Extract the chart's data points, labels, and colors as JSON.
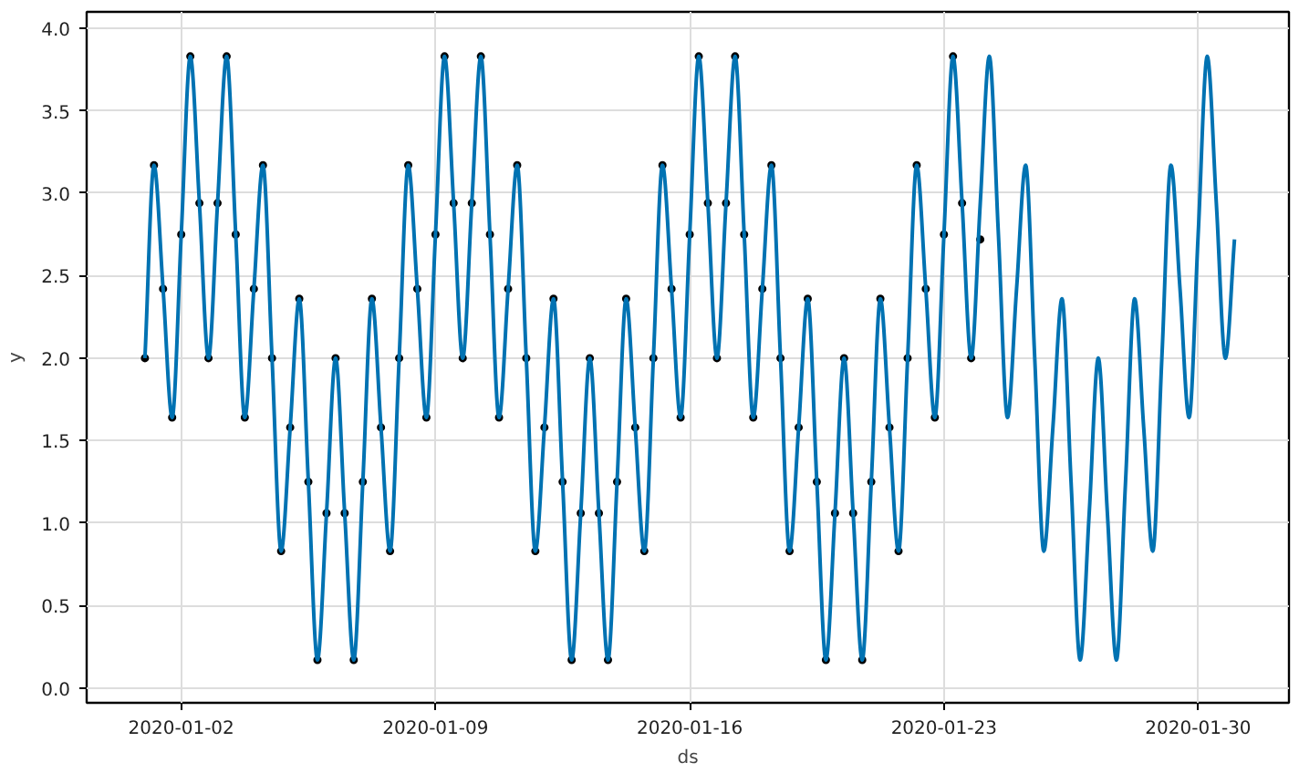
{
  "chart_data": {
    "type": "line",
    "xlabel": "ds",
    "ylabel": "y",
    "x": [
      "2020-01-01T00:00",
      "2020-01-01T06:00",
      "2020-01-01T12:00",
      "2020-01-01T18:00",
      "2020-01-02T00:00",
      "2020-01-02T06:00",
      "2020-01-02T12:00",
      "2020-01-02T18:00",
      "2020-01-03T00:00",
      "2020-01-03T06:00",
      "2020-01-03T12:00",
      "2020-01-03T18:00",
      "2020-01-04T00:00",
      "2020-01-04T06:00",
      "2020-01-04T12:00",
      "2020-01-04T18:00",
      "2020-01-05T00:00",
      "2020-01-05T06:00",
      "2020-01-05T12:00",
      "2020-01-05T18:00",
      "2020-01-06T00:00",
      "2020-01-06T06:00",
      "2020-01-06T12:00",
      "2020-01-06T18:00",
      "2020-01-07T00:00",
      "2020-01-07T06:00",
      "2020-01-07T12:00",
      "2020-01-07T18:00",
      "2020-01-08T00:00",
      "2020-01-08T06:00",
      "2020-01-08T12:00",
      "2020-01-08T18:00",
      "2020-01-09T00:00",
      "2020-01-09T06:00",
      "2020-01-09T12:00",
      "2020-01-09T18:00",
      "2020-01-10T00:00",
      "2020-01-10T06:00",
      "2020-01-10T12:00",
      "2020-01-10T18:00",
      "2020-01-11T00:00",
      "2020-01-11T06:00",
      "2020-01-11T12:00",
      "2020-01-11T18:00",
      "2020-01-12T00:00",
      "2020-01-12T06:00",
      "2020-01-12T12:00",
      "2020-01-12T18:00",
      "2020-01-13T00:00",
      "2020-01-13T06:00",
      "2020-01-13T12:00",
      "2020-01-13T18:00",
      "2020-01-14T00:00",
      "2020-01-14T06:00",
      "2020-01-14T12:00",
      "2020-01-14T18:00",
      "2020-01-15T00:00",
      "2020-01-15T06:00",
      "2020-01-15T12:00",
      "2020-01-15T18:00",
      "2020-01-16T00:00",
      "2020-01-16T06:00",
      "2020-01-16T12:00",
      "2020-01-16T18:00",
      "2020-01-17T00:00",
      "2020-01-17T06:00",
      "2020-01-17T12:00",
      "2020-01-17T18:00",
      "2020-01-18T00:00",
      "2020-01-18T06:00",
      "2020-01-18T12:00",
      "2020-01-18T18:00",
      "2020-01-19T00:00",
      "2020-01-19T06:00",
      "2020-01-19T12:00",
      "2020-01-19T18:00",
      "2020-01-20T00:00",
      "2020-01-20T06:00",
      "2020-01-20T12:00",
      "2020-01-20T18:00",
      "2020-01-21T00:00",
      "2020-01-21T06:00",
      "2020-01-21T12:00",
      "2020-01-21T18:00",
      "2020-01-22T00:00",
      "2020-01-22T06:00",
      "2020-01-22T12:00",
      "2020-01-22T18:00",
      "2020-01-23T00:00",
      "2020-01-23T06:00",
      "2020-01-23T12:00",
      "2020-01-23T18:00",
      "2020-01-24T00:00",
      "2020-01-24T06:00",
      "2020-01-24T12:00",
      "2020-01-24T18:00",
      "2020-01-25T00:00",
      "2020-01-25T06:00",
      "2020-01-25T12:00",
      "2020-01-25T18:00",
      "2020-01-26T00:00",
      "2020-01-26T06:00",
      "2020-01-26T12:00",
      "2020-01-26T18:00",
      "2020-01-27T00:00",
      "2020-01-27T06:00",
      "2020-01-27T12:00",
      "2020-01-27T18:00",
      "2020-01-28T00:00",
      "2020-01-28T06:00",
      "2020-01-28T12:00",
      "2020-01-28T18:00",
      "2020-01-29T00:00",
      "2020-01-29T06:00",
      "2020-01-29T12:00",
      "2020-01-29T18:00",
      "2020-01-30T00:00",
      "2020-01-30T06:00",
      "2020-01-30T12:00",
      "2020-01-30T18:00",
      "2020-01-31T00:00"
    ],
    "series": [
      {
        "type": "scatter",
        "color": "#000000",
        "values": [
          2.0,
          3.17,
          2.42,
          1.64,
          2.75,
          3.83,
          2.94,
          2.0,
          2.94,
          3.83,
          2.75,
          1.64,
          2.42,
          3.17,
          2.0,
          0.83,
          1.58,
          2.36,
          1.25,
          0.17,
          1.06,
          2.0,
          1.06,
          0.17,
          1.25,
          2.36,
          1.58,
          0.83,
          2.0,
          3.17,
          2.42,
          1.64,
          2.75,
          3.83,
          2.94,
          2.0,
          2.94,
          3.83,
          2.75,
          1.64,
          2.42,
          3.17,
          2.0,
          0.83,
          1.58,
          2.36,
          1.25,
          0.17,
          1.06,
          2.0,
          1.06,
          0.17,
          1.25,
          2.36,
          1.58,
          0.83,
          2.0,
          3.17,
          2.42,
          1.64,
          2.75,
          3.83,
          2.94,
          2.0,
          2.94,
          3.83,
          2.75,
          1.64,
          2.42,
          3.17,
          2.0,
          0.83,
          1.58,
          2.36,
          1.25,
          0.17,
          1.06,
          2.0,
          1.06,
          0.17,
          1.25,
          2.36,
          1.58,
          0.83,
          2.0,
          3.17,
          2.42,
          1.64,
          2.75,
          3.83,
          2.94,
          2.0,
          2.72,
          null,
          null,
          null,
          null,
          null,
          null,
          null,
          null,
          null,
          null,
          null,
          null,
          null,
          null,
          null,
          null,
          null,
          null,
          null,
          null,
          null,
          null,
          null,
          null,
          null,
          null,
          null,
          null
        ]
      },
      {
        "color": "#0072b2",
        "values": [
          2.0,
          3.17,
          2.42,
          1.64,
          2.75,
          3.83,
          2.94,
          2.0,
          2.94,
          3.83,
          2.75,
          1.64,
          2.42,
          3.17,
          2.0,
          0.83,
          1.58,
          2.36,
          1.25,
          0.17,
          1.06,
          2.0,
          1.06,
          0.17,
          1.25,
          2.36,
          1.58,
          0.83,
          2.0,
          3.17,
          2.42,
          1.64,
          2.75,
          3.83,
          2.94,
          2.0,
          2.94,
          3.83,
          2.75,
          1.64,
          2.42,
          3.17,
          2.0,
          0.83,
          1.58,
          2.36,
          1.25,
          0.17,
          1.06,
          2.0,
          1.06,
          0.17,
          1.25,
          2.36,
          1.58,
          0.83,
          2.0,
          3.17,
          2.42,
          1.64,
          2.75,
          3.83,
          2.94,
          2.0,
          2.94,
          3.83,
          2.75,
          1.64,
          2.42,
          3.17,
          2.0,
          0.83,
          1.58,
          2.36,
          1.25,
          0.17,
          1.06,
          2.0,
          1.06,
          0.17,
          1.25,
          2.36,
          1.58,
          0.83,
          2.0,
          3.17,
          2.42,
          1.64,
          2.75,
          3.83,
          2.94,
          2.0,
          2.94,
          3.83,
          2.75,
          1.64,
          2.42,
          3.17,
          2.0,
          0.83,
          1.58,
          2.36,
          1.25,
          0.17,
          1.06,
          2.0,
          1.06,
          0.17,
          1.25,
          2.36,
          1.58,
          0.83,
          2.0,
          3.17,
          2.42,
          1.64,
          2.75,
          3.83,
          2.94,
          2.0,
          2.72
        ]
      }
    ],
    "xlim": [
      "2019-12-30T09:30",
      "2020-02-01T12:00"
    ],
    "xticks": [
      "2020-01-02",
      "2020-01-09",
      "2020-01-16",
      "2020-01-23",
      "2020-01-30"
    ],
    "ylim": [
      -0.09,
      4.1
    ],
    "yticks": [
      {
        "value": 0,
        "label": "0.0"
      },
      {
        "value": 0.5,
        "label": "0.5"
      },
      {
        "value": 1,
        "label": "1.0"
      },
      {
        "value": 1.5,
        "label": "1.5"
      },
      {
        "value": 2,
        "label": "2.0"
      },
      {
        "value": 2.5,
        "label": "2.5"
      },
      {
        "value": 3,
        "label": "3.0"
      },
      {
        "value": 3.5,
        "label": "3.5"
      },
      {
        "value": 4,
        "label": "4.0"
      }
    ],
    "grid": true
  }
}
